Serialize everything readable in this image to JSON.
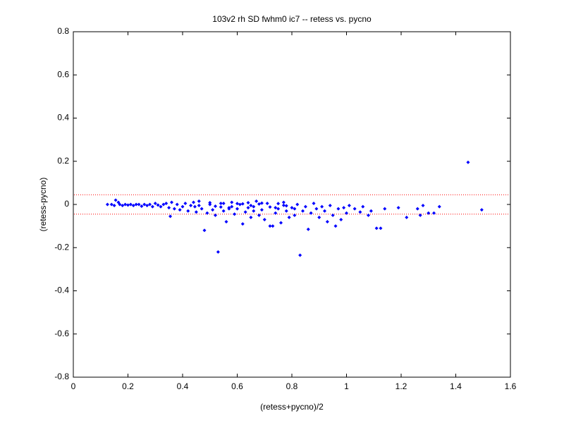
{
  "chart_data": {
    "type": "scatter",
    "title": "103v2 rh SD fwhm0 ic7 -- retess vs. pycno",
    "xlabel": "(retess+pycno)/2",
    "ylabel": "(retess-pycno)",
    "xlim": [
      0,
      1.6
    ],
    "xticks": [
      0,
      0.2,
      0.4,
      0.6,
      0.8,
      1,
      1.2,
      1.4,
      1.6
    ],
    "ylim": [
      -0.8,
      0.8
    ],
    "yticks": [
      -0.8,
      -0.6,
      -0.4,
      -0.2,
      0,
      0.2,
      0.4,
      0.6,
      0.8
    ],
    "grid": false,
    "reference_lines": [
      0.045,
      -0.045
    ],
    "reference_line_color": "#ff0000",
    "series": [
      {
        "color": "#0000ff",
        "x": [
          0.125,
          0.14,
          0.15,
          0.155,
          0.165,
          0.17,
          0.18,
          0.19,
          0.2,
          0.21,
          0.22,
          0.23,
          0.24,
          0.25,
          0.26,
          0.27,
          0.28,
          0.29,
          0.3,
          0.31,
          0.32,
          0.33,
          0.34,
          0.35,
          0.355,
          0.36,
          0.37,
          0.38,
          0.39,
          0.4,
          0.41,
          0.42,
          0.43,
          0.44,
          0.45,
          0.46,
          0.47,
          0.48,
          0.49,
          0.5,
          0.51,
          0.52,
          0.53,
          0.54,
          0.55,
          0.56,
          0.57,
          0.58,
          0.59,
          0.6,
          0.61,
          0.62,
          0.63,
          0.64,
          0.65,
          0.66,
          0.67,
          0.68,
          0.69,
          0.7,
          0.71,
          0.72,
          0.73,
          0.74,
          0.75,
          0.76,
          0.77,
          0.78,
          0.79,
          0.8,
          0.81,
          0.82,
          0.83,
          0.84,
          0.85,
          0.86,
          0.87,
          0.88,
          0.89,
          0.9,
          0.91,
          0.92,
          0.93,
          0.94,
          0.95,
          0.96,
          0.97,
          0.98,
          0.99,
          1.0,
          1.01,
          1.03,
          1.05,
          1.06,
          1.08,
          1.09,
          1.11,
          1.125,
          1.14,
          1.19,
          1.22,
          1.26,
          1.27,
          1.28,
          1.3,
          1.32,
          1.34,
          1.445,
          1.495,
          0.445,
          0.52,
          0.55,
          0.58,
          0.62,
          0.65,
          0.68,
          0.72,
          0.75,
          0.78,
          0.64,
          0.46,
          0.5,
          0.57,
          0.66,
          0.74,
          0.81,
          0.69,
          0.6,
          0.54,
          0.77
        ],
        "values": [
          0,
          0,
          -0.005,
          0.02,
          0.01,
          0,
          -0.005,
          0,
          -0.003,
          0,
          -0.005,
          0,
          0,
          -0.008,
          0,
          -0.005,
          0,
          -0.01,
          0.005,
          -0.003,
          -0.01,
          0,
          0.005,
          -0.015,
          -0.055,
          0.01,
          -0.02,
          0,
          -0.025,
          -0.01,
          0.005,
          -0.03,
          -0.005,
          0.01,
          -0.035,
          0.015,
          -0.02,
          -0.12,
          -0.04,
          0,
          -0.025,
          -0.05,
          -0.22,
          0.005,
          -0.03,
          -0.08,
          -0.015,
          0.01,
          -0.045,
          -0.02,
          0,
          -0.09,
          -0.035,
          0.008,
          -0.06,
          -0.01,
          0.015,
          -0.05,
          -0.025,
          -0.07,
          0.005,
          -0.1,
          -0.1,
          -0.04,
          -0.02,
          -0.085,
          0.01,
          -0.03,
          -0.06,
          -0.015,
          -0.05,
          0,
          -0.235,
          -0.03,
          -0.01,
          -0.115,
          -0.04,
          0.005,
          -0.02,
          -0.06,
          -0.01,
          -0.03,
          -0.08,
          -0.005,
          -0.05,
          -0.1,
          -0.02,
          -0.07,
          -0.015,
          -0.04,
          -0.005,
          -0.02,
          -0.035,
          -0.01,
          -0.05,
          -0.03,
          -0.11,
          -0.11,
          -0.02,
          -0.015,
          -0.06,
          -0.02,
          -0.05,
          -0.005,
          -0.04,
          -0.04,
          -0.01,
          0.195,
          -0.025,
          -0.01,
          -0.008,
          0.005,
          -0.01,
          0.003,
          -0.005,
          0.002,
          -0.012,
          0.004,
          -0.006,
          -0.015,
          -0.005,
          0.008,
          -0.02,
          -0.03,
          -0.015,
          -0.02,
          0.006,
          0.004,
          -0.012,
          -0.004
        ]
      }
    ]
  }
}
